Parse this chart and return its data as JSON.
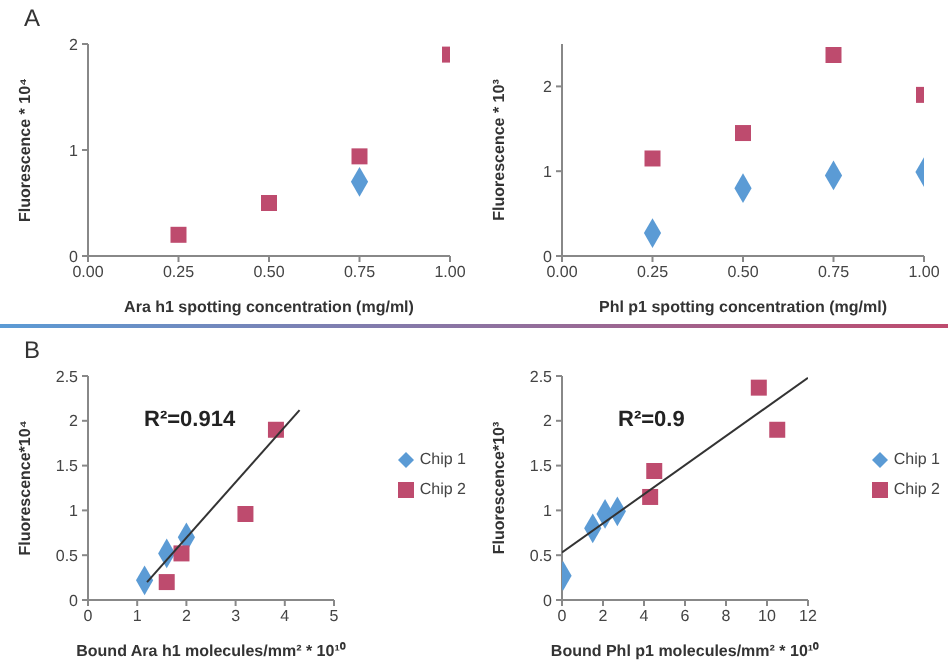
{
  "chart_data": [
    {
      "type": "scatter",
      "title": "A",
      "xlabel": "Ara h1 spotting concentration (mg/ml)",
      "ylabel": "Fluorescence * 10⁴",
      "x": [
        0.25,
        0.5,
        0.75,
        1.0
      ],
      "series": [
        {
          "color": "#5b9bd5",
          "marker": "diamond",
          "values": [
            null,
            null,
            0.7,
            null
          ]
        },
        {
          "color": "#be4b6e",
          "marker": "square",
          "values": [
            0.2,
            0.5,
            0.94,
            1.9
          ]
        }
      ],
      "xlim": [
        0,
        1
      ],
      "xticks": [
        {
          "value": 0,
          "label": "0.00"
        },
        {
          "value": 0.25,
          "label": "0.25"
        },
        {
          "value": 0.5,
          "label": "0.50"
        },
        {
          "value": 0.75,
          "label": "0.75"
        },
        {
          "value": 1,
          "label": "1.00"
        }
      ],
      "ylim": [
        0,
        2
      ],
      "yticks": [
        0,
        1,
        2
      ]
    },
    {
      "type": "scatter",
      "xlabel": "Phl p1 spotting concentration (mg/ml)",
      "ylabel": "Fluorescence * 10³",
      "x": [
        0.25,
        0.5,
        0.75,
        1.0
      ],
      "series": [
        {
          "color": "#5b9bd5",
          "marker": "diamond",
          "values": [
            0.27,
            0.8,
            0.95,
            0.99
          ]
        },
        {
          "color": "#be4b6e",
          "marker": "square",
          "values": [
            1.15,
            1.45,
            2.37,
            1.9
          ]
        }
      ],
      "xlim": [
        0,
        1
      ],
      "xticks": [
        {
          "value": 0,
          "label": "0.00"
        },
        {
          "value": 0.25,
          "label": "0.25"
        },
        {
          "value": 0.5,
          "label": "0.50"
        },
        {
          "value": 0.75,
          "label": "0.75"
        },
        {
          "value": 1,
          "label": "1.00"
        }
      ],
      "ylim": [
        0,
        2.5
      ],
      "yticks": [
        0,
        1,
        2
      ]
    },
    {
      "type": "scatter",
      "title": "B",
      "xlabel": "Bound Ara h1 molecules/mm² * 10¹⁰",
      "ylabel": "Fluorescence*10⁴",
      "annotations": [
        "R²=0.914"
      ],
      "series": [
        {
          "name": "Chip 1",
          "color": "#5b9bd5",
          "marker": "diamond",
          "x": [
            1.15,
            1.6,
            2.0
          ],
          "values": [
            0.22,
            0.52,
            0.7
          ]
        },
        {
          "name": "Chip 2",
          "color": "#be4b6e",
          "marker": "square",
          "x": [
            1.6,
            1.9,
            3.2,
            3.82
          ],
          "values": [
            0.2,
            0.52,
            0.96,
            1.9
          ]
        },
        {
          "type": "line",
          "color": "#333333",
          "x": [
            1.2,
            4.3
          ],
          "values": [
            0.2,
            2.12
          ]
        }
      ],
      "xlim": [
        0,
        5
      ],
      "xticks": [
        0,
        1,
        2,
        3,
        4,
        5
      ],
      "ylim": [
        0,
        2.5
      ],
      "yticks": [
        0,
        0.5,
        1,
        1.5,
        2,
        2.5
      ],
      "legend": "right"
    },
    {
      "type": "scatter",
      "xlabel": "Bound Phl p1 molecules/mm² * 10¹⁰",
      "ylabel": "Fluorescence*10³",
      "annotations": [
        "R²=0.9"
      ],
      "series": [
        {
          "name": "Chip 1",
          "color": "#5b9bd5",
          "marker": "diamond",
          "x": [
            0.05,
            1.5,
            2.1,
            2.7
          ],
          "values": [
            0.27,
            0.8,
            0.96,
            0.99
          ]
        },
        {
          "name": "Chip 2",
          "color": "#be4b6e",
          "marker": "square",
          "x": [
            4.3,
            4.5,
            9.6,
            10.5
          ],
          "values": [
            1.15,
            1.44,
            2.37,
            1.9
          ]
        },
        {
          "type": "line",
          "color": "#333333",
          "x": [
            0,
            12
          ],
          "values": [
            0.53,
            2.48
          ]
        }
      ],
      "xlim": [
        0,
        12
      ],
      "xticks": [
        0,
        2,
        4,
        6,
        8,
        10,
        12
      ],
      "ylim": [
        0,
        2.5
      ],
      "yticks": [
        0,
        0.5,
        1,
        1.5,
        2,
        2.5
      ],
      "legend": "right"
    }
  ]
}
